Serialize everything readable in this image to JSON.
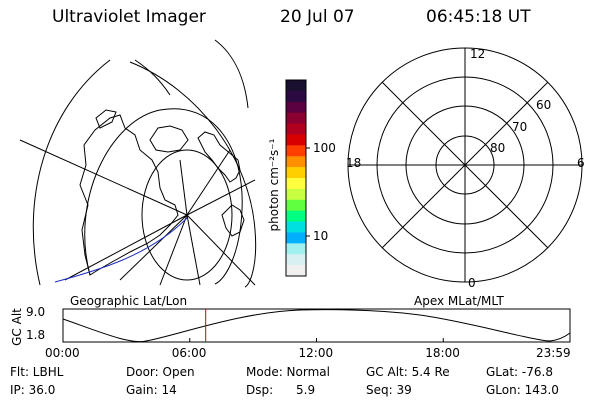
{
  "header": {
    "title": "Ultraviolet Imager",
    "date": "20 Jul 07",
    "time": "06:45:18 UT"
  },
  "left_map": {
    "caption": "Geographic Lat/Lon"
  },
  "colorbar": {
    "label": "photon cm⁻²s⁻¹",
    "ticks": [
      "100",
      "10"
    ],
    "colors": [
      "#1a1030",
      "#2a0a40",
      "#5a0040",
      "#8a0030",
      "#b00020",
      "#d80000",
      "#ff4000",
      "#ff9000",
      "#ffd000",
      "#ffff40",
      "#c8ff40",
      "#60ff40",
      "#00ff80",
      "#00e0e0",
      "#00b0ff",
      "#a0f0f0",
      "#d8f0f0",
      "#f0f0f0"
    ]
  },
  "polar": {
    "caption": "Apex MLat/MLT",
    "mlt_labels": {
      "top": "12",
      "bottom": "0",
      "left": "18",
      "right": "6"
    },
    "lat_labels": [
      "60",
      "70",
      "80"
    ]
  },
  "altitude_plot": {
    "ylabel": "GC Alt",
    "yticks": [
      "9.0",
      "1.8"
    ],
    "xticks": [
      "00:00",
      "06:00",
      "12:00",
      "18:00",
      "23:59"
    ],
    "current_time_hours": 6.755
  },
  "info": {
    "flt": "Flt: LBHL",
    "ip": "IP: 36.0",
    "door": "Door: Open",
    "gain": "Gain: 14",
    "mode": "Mode: Normal",
    "dsp": "Dsp:      5.9",
    "gcalt": "GC Alt: 5.4 Re",
    "seq": "Seq: 39",
    "glat": "GLat: -76.8",
    "glon": "GLon: 143.0"
  }
}
